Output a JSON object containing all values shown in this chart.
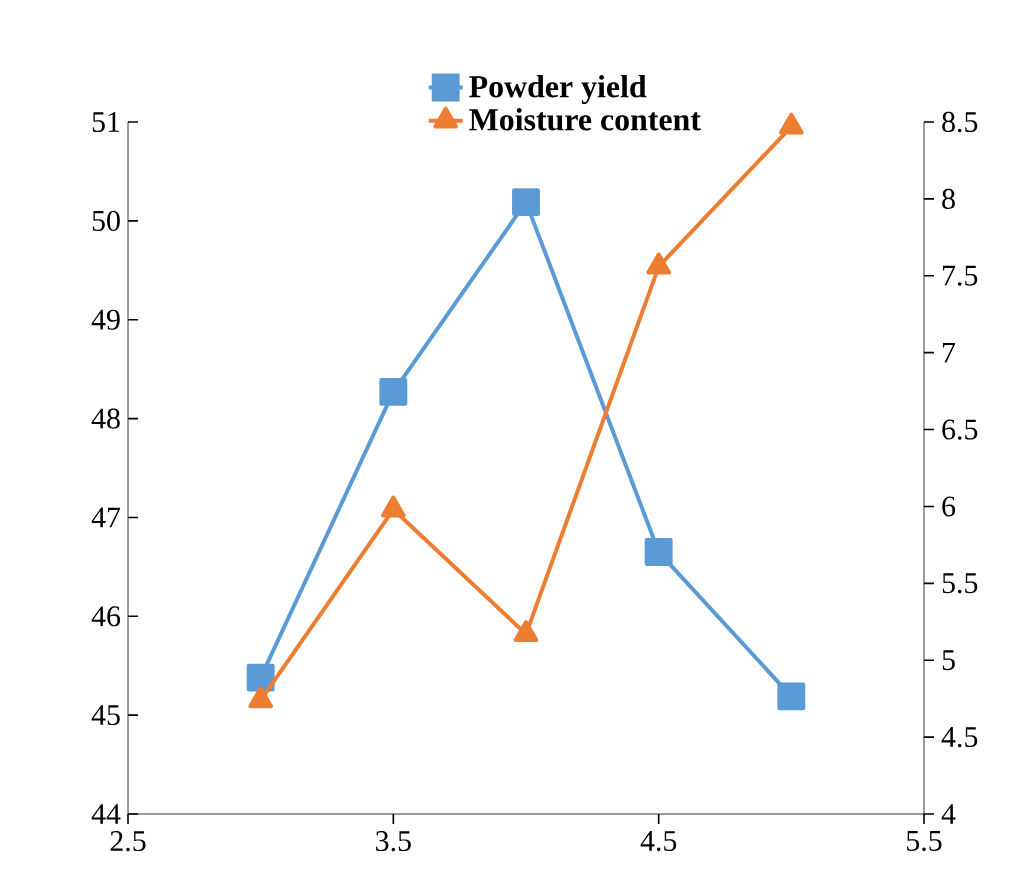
{
  "chart_data": {
    "type": "line",
    "x": [
      3,
      3.5,
      4,
      4.5,
      5
    ],
    "series": [
      {
        "name": "Powder yield",
        "color": "#5b9bd5",
        "marker": "square",
        "values": [
          45.38,
          48.27,
          50.19,
          46.65,
          45.19
        ]
      },
      {
        "name": "Moisture content",
        "color": "#ed7d31",
        "marker": "triangle",
        "axis": "y2",
        "values": [
          4.74,
          5.98,
          5.17,
          7.56,
          8.47
        ]
      }
    ],
    "xlim": [
      2.5,
      5.5
    ],
    "xticks": [
      2.5,
      3.5,
      4.5,
      5.5
    ],
    "ylim": [
      44,
      51
    ],
    "yticks": [
      44,
      45,
      46,
      47,
      48,
      49,
      50,
      51
    ],
    "y2lim": [
      4,
      8.5
    ],
    "y2ticks": [
      4,
      4.5,
      5,
      5.5,
      6,
      6.5,
      7,
      7.5,
      8,
      8.5
    ],
    "grid": false,
    "legend": "top",
    "line_style": "solid"
  }
}
